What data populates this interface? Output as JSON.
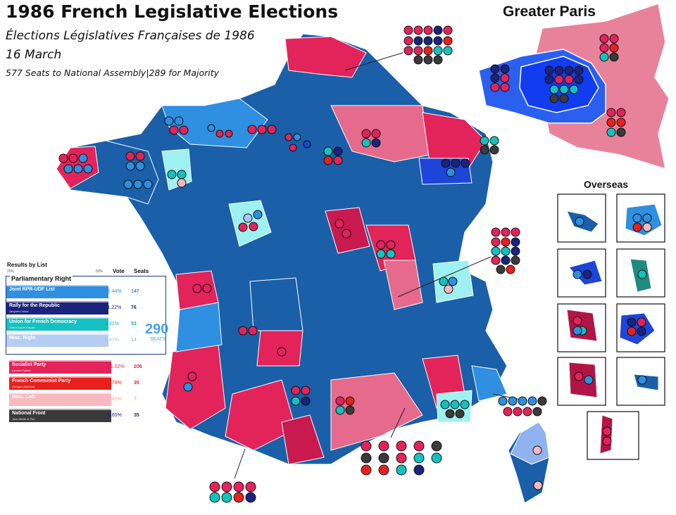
{
  "title": "1986 French Legislative Elections",
  "subtitle": "Élections Législatives Françaises de 1986",
  "date": "16 March",
  "seats_line": "577 Seats to National Assembly|289 for Majority",
  "insets": {
    "paris_title": "Greater Paris",
    "overseas_title": "Overseas"
  },
  "colors": {
    "joint": "#2f8fe0",
    "rpr": "#1a237e",
    "udf": "#15c1c0",
    "misc_right": "#a9c7f0",
    "ps": "#e2245a",
    "pcf": "#e8201e",
    "misc_left": "#f7b9bf",
    "fn": "#3a3a3a",
    "sea": "#ffffff"
  },
  "legend": {
    "header": "Results by List",
    "scale_left": "25%",
    "scale_right": "50%",
    "col_vote": "Vote",
    "col_seats": "Seats",
    "right_bloc": {
      "title": "Parliamentary Right",
      "total": "290",
      "total_label": "SEATS",
      "rows": [
        {
          "name": "Joint RPR-UDF List",
          "leader": "",
          "vote": "21.44%",
          "seats": "147",
          "color": "#2f8fe0",
          "text": "#2f8fe0"
        },
        {
          "name": "Rally for the Republic",
          "leader": "Jacques Chirac",
          "vote": "11.22%",
          "seats": "76",
          "color": "#1a237e",
          "text": "#1a237e"
        },
        {
          "name": "Union for French Democracy",
          "leader": "Jean-Claude Gaudin",
          "vote": "8.31%",
          "seats": "53",
          "color": "#15c1c0",
          "text": "#15a9b0"
        },
        {
          "name": "Misc. Right",
          "leader": "",
          "vote": "3.87%",
          "seats": "14",
          "color": "#b6cdf2",
          "text": "#a6bde6"
        }
      ]
    },
    "left_rows": [
      {
        "name": "Socialist Party",
        "leader": "Laurent Fabius",
        "vote": "31.02%",
        "seats": "206",
        "color": "#e2245a",
        "text": "#e2245a"
      },
      {
        "name": "French Communist Party",
        "leader": "Georges Marchais",
        "vote": "9.78%",
        "seats": "35",
        "color": "#e8201e",
        "text": "#e8201e"
      },
      {
        "name": "Misc. Left",
        "leader": "",
        "vote": "1.45%",
        "seats": "7",
        "color": "#f7b9bf",
        "text": "#f4a6ae"
      },
      {
        "name": "National Front",
        "leader": "Jean-Marie le Pen",
        "vote": "9.65%",
        "seats": "35",
        "color": "#3a3a3a",
        "text": "#1a237e"
      }
    ]
  }
}
